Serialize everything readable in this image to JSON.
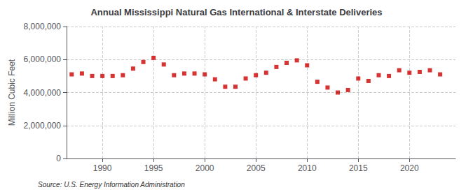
{
  "chart_data": {
    "type": "scatter",
    "title": "Annual Mississippi Natural Gas International & Interstate Deliveries",
    "ylabel": "Million Cubic Feet",
    "source": "Source: U.S. Energy Information Administration",
    "color": "#cc0000",
    "marker": "square",
    "x": [
      1987,
      1988,
      1989,
      1990,
      1991,
      1992,
      1993,
      1994,
      1995,
      1996,
      1997,
      1998,
      1999,
      2000,
      2001,
      2002,
      2003,
      2004,
      2005,
      2006,
      2007,
      2008,
      2009,
      2010,
      2011,
      2012,
      2013,
      2014,
      2015,
      2016,
      2017,
      2018,
      2019,
      2020,
      2021,
      2022,
      2023
    ],
    "values": [
      5100000,
      5150000,
      5000000,
      5000000,
      5000000,
      5050000,
      5450000,
      5850000,
      6100000,
      5700000,
      5050000,
      5150000,
      5150000,
      5100000,
      4800000,
      4350000,
      4350000,
      4850000,
      5050000,
      5200000,
      5550000,
      5800000,
      5950000,
      5650000,
      4650000,
      4300000,
      4000000,
      4150000,
      4850000,
      4700000,
      5050000,
      5000000,
      5350000,
      5200000,
      5250000,
      5350000,
      5100000
    ],
    "xlim": [
      1986.5,
      2024.5
    ],
    "xticks": [
      1990,
      1995,
      2000,
      2005,
      2010,
      2015,
      2020
    ],
    "ylim": [
      0,
      8000000
    ],
    "yticks": [
      {
        "value": 0,
        "label": "0"
      },
      {
        "value": 2000000,
        "label": "2,000,000"
      },
      {
        "value": 4000000,
        "label": "4,000,000"
      },
      {
        "value": 6000000,
        "label": "6,000,000"
      },
      {
        "value": 8000000,
        "label": "8,000,000"
      }
    ],
    "grid": true
  }
}
